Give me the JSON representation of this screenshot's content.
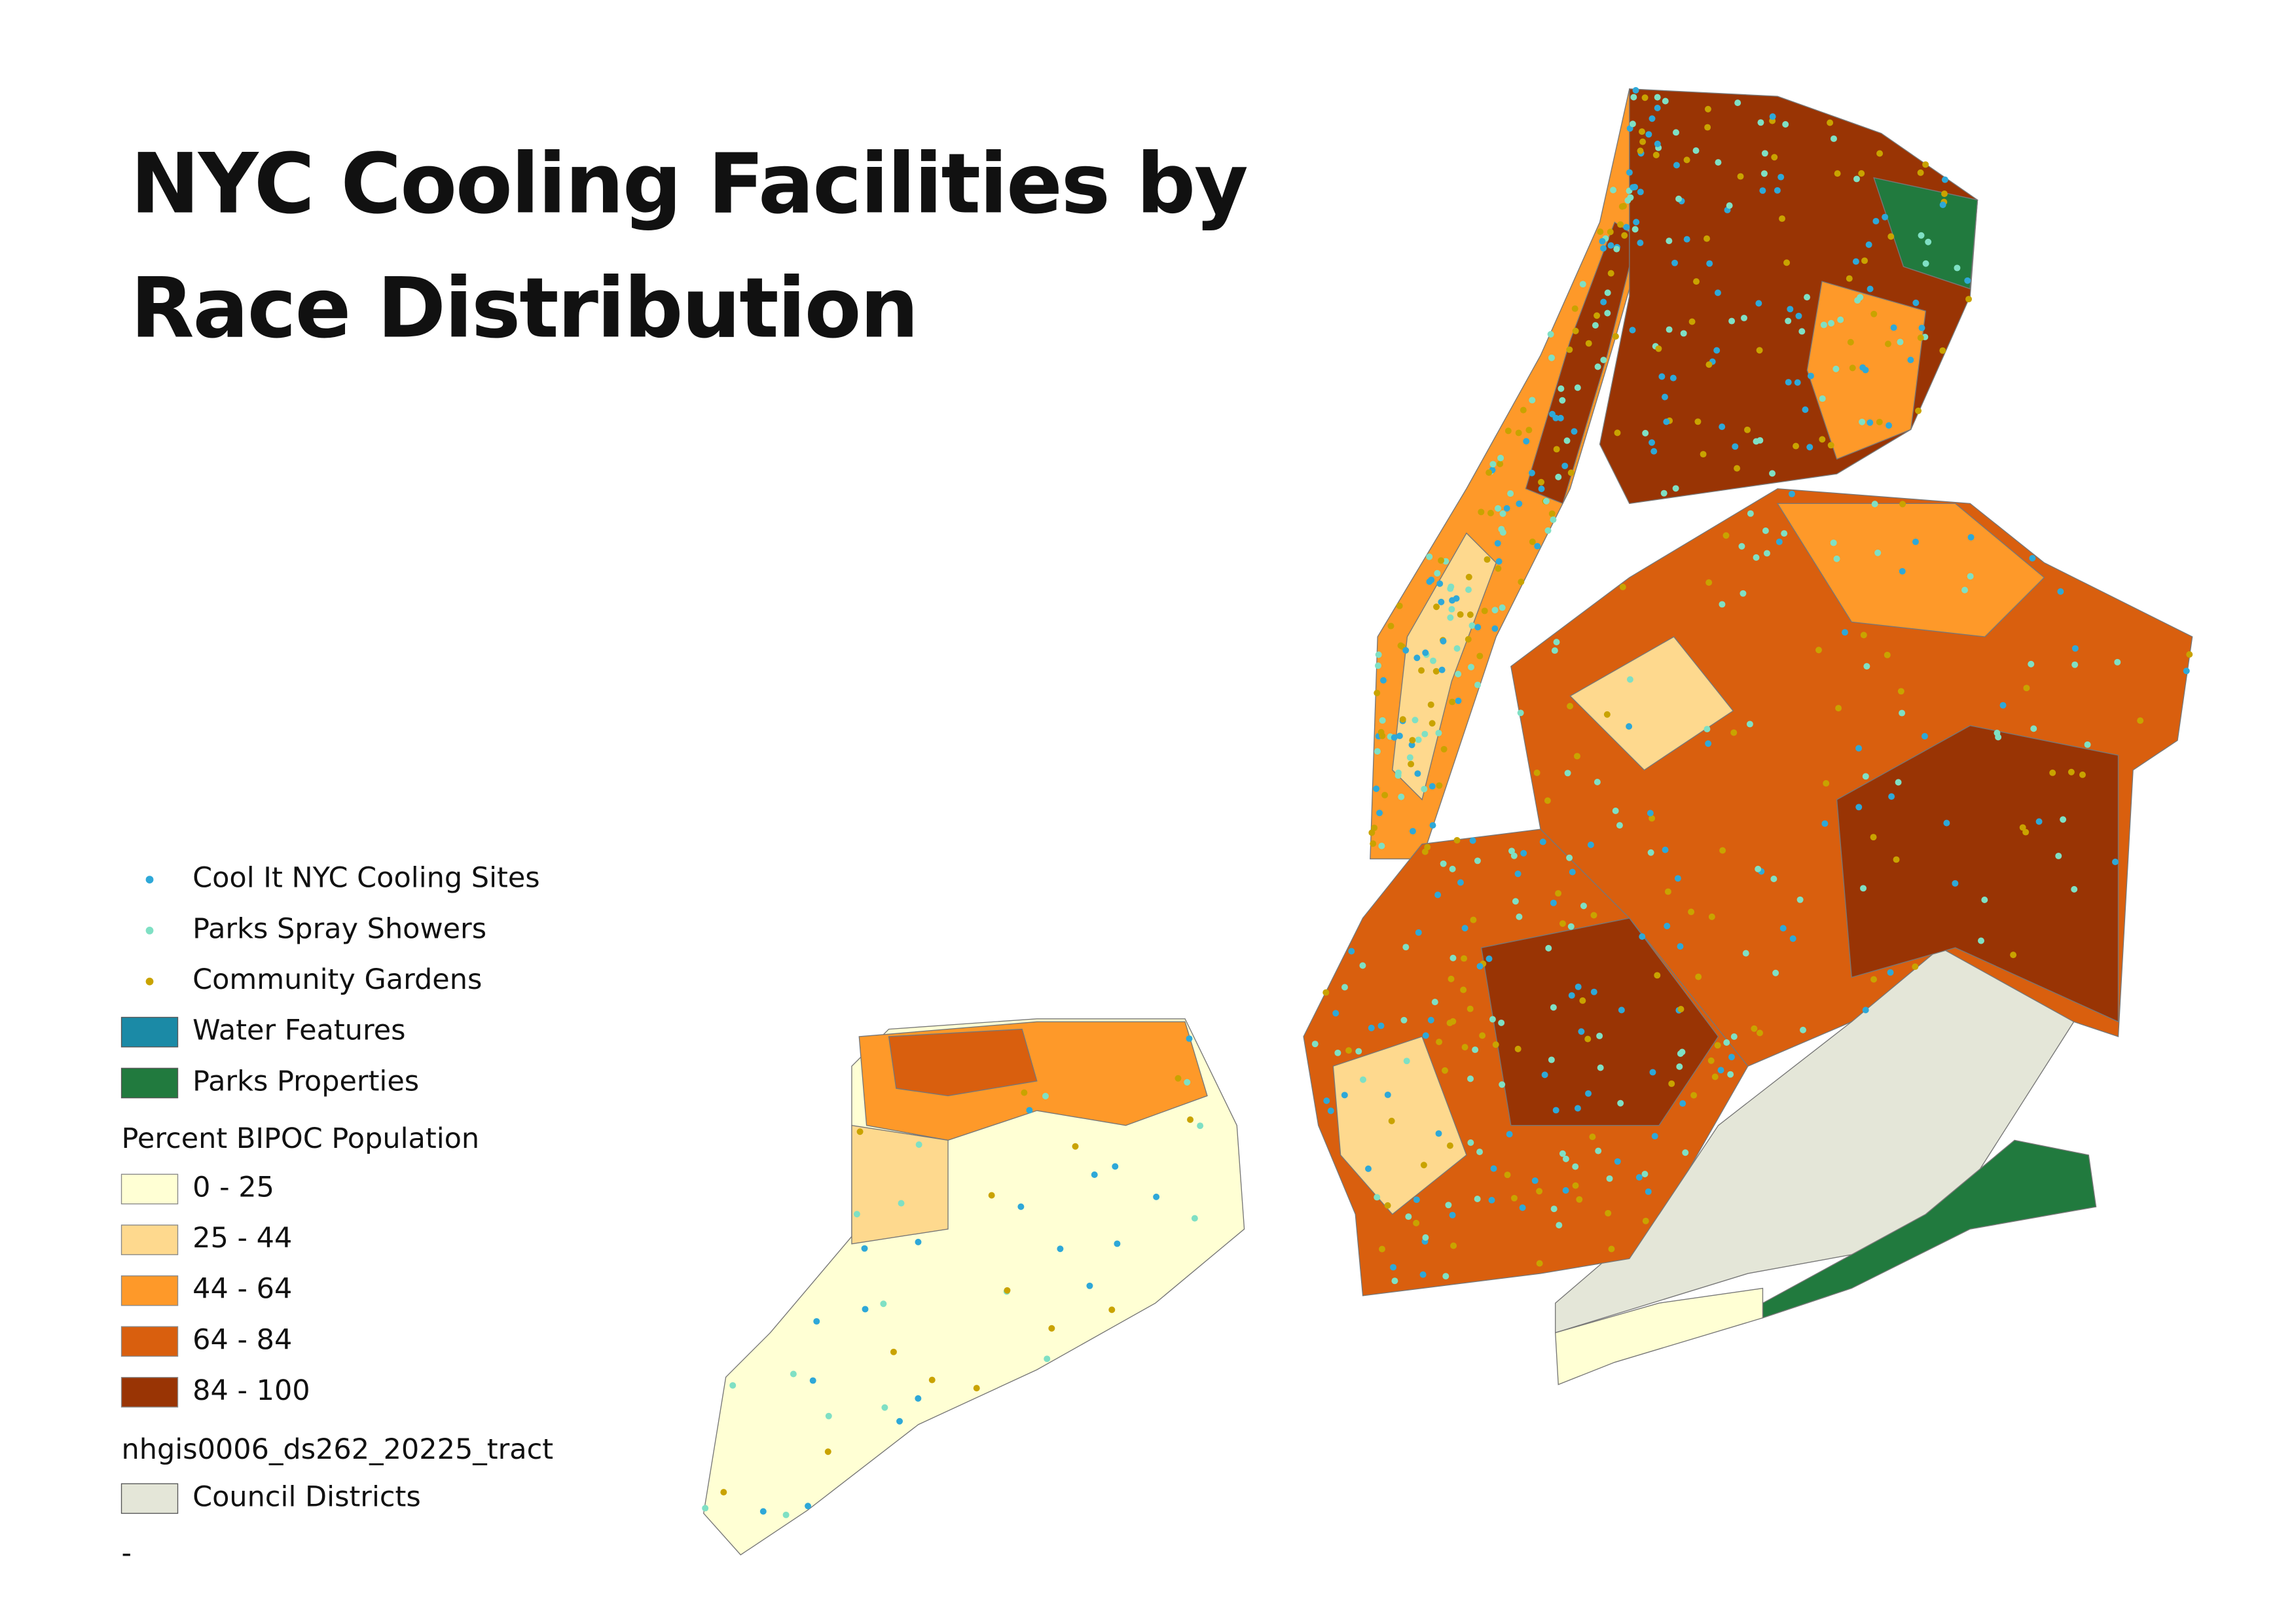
{
  "title_lines": [
    "NYC Cooling Facilities by",
    "Race Distribution"
  ],
  "legend": {
    "points": [
      {
        "label": "Cool It NYC Cooling Sites",
        "color": "#2ea8d8"
      },
      {
        "label": "Parks Spray Showers",
        "color": "#7fe0c4"
      },
      {
        "label": "Community  Gardens",
        "color": "#c9a300"
      }
    ],
    "areas": [
      {
        "label": "Water Features",
        "color": "#1b8aa6"
      },
      {
        "label": "Parks Properties",
        "color": "#217a3e"
      }
    ],
    "choropleth_title": "Percent BIPOC Population",
    "classes": [
      {
        "label": "0 - 25",
        "color": "#ffffd4"
      },
      {
        "label": "25 - 44",
        "color": "#fed98e"
      },
      {
        "label": "44 - 64",
        "color": "#fe9929"
      },
      {
        "label": "64 - 84",
        "color": "#d95f0e"
      },
      {
        "label": "84 - 100",
        "color": "#993404"
      }
    ],
    "layer_name": "nhgis0006_ds262_20225_tract",
    "council": {
      "label": "Council Districts",
      "color": "#e4e6d8"
    },
    "trailing": "-"
  }
}
